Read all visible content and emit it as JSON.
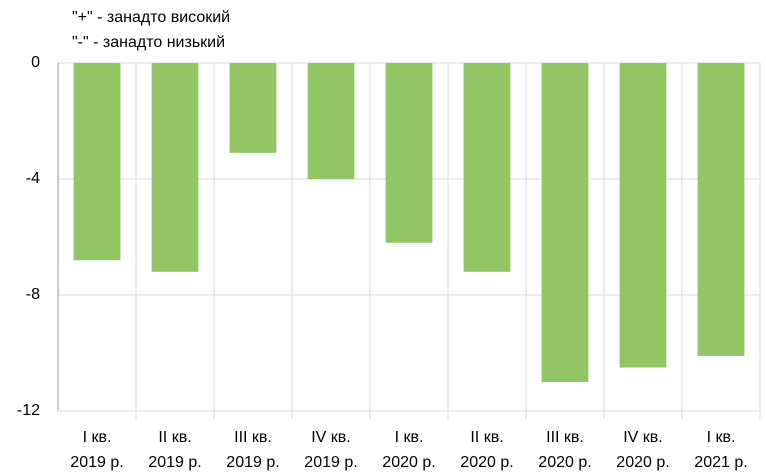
{
  "chart_data": {
    "type": "bar",
    "annotations": [
      "\"+\" - занадто високий",
      "\"-\" - занадто низький"
    ],
    "categories": [
      [
        "I кв.",
        "2019 р."
      ],
      [
        "II кв.",
        "2019 р."
      ],
      [
        "III кв.",
        "2019 р."
      ],
      [
        "IV кв.",
        "2019 р."
      ],
      [
        "I кв.",
        "2020 р."
      ],
      [
        "II кв.",
        "2020 р."
      ],
      [
        "III кв.",
        "2020 р."
      ],
      [
        "IV кв.",
        "2020 р."
      ],
      [
        "I кв.",
        "2021 р."
      ]
    ],
    "values": [
      -6.8,
      -7.2,
      -3.1,
      -4.0,
      -6.2,
      -7.2,
      -11.0,
      -10.5,
      -10.1
    ],
    "color": "#92c665",
    "ylim": [
      -12,
      0
    ],
    "yticks": [
      0,
      -4,
      -8,
      -12
    ],
    "grid": true
  }
}
